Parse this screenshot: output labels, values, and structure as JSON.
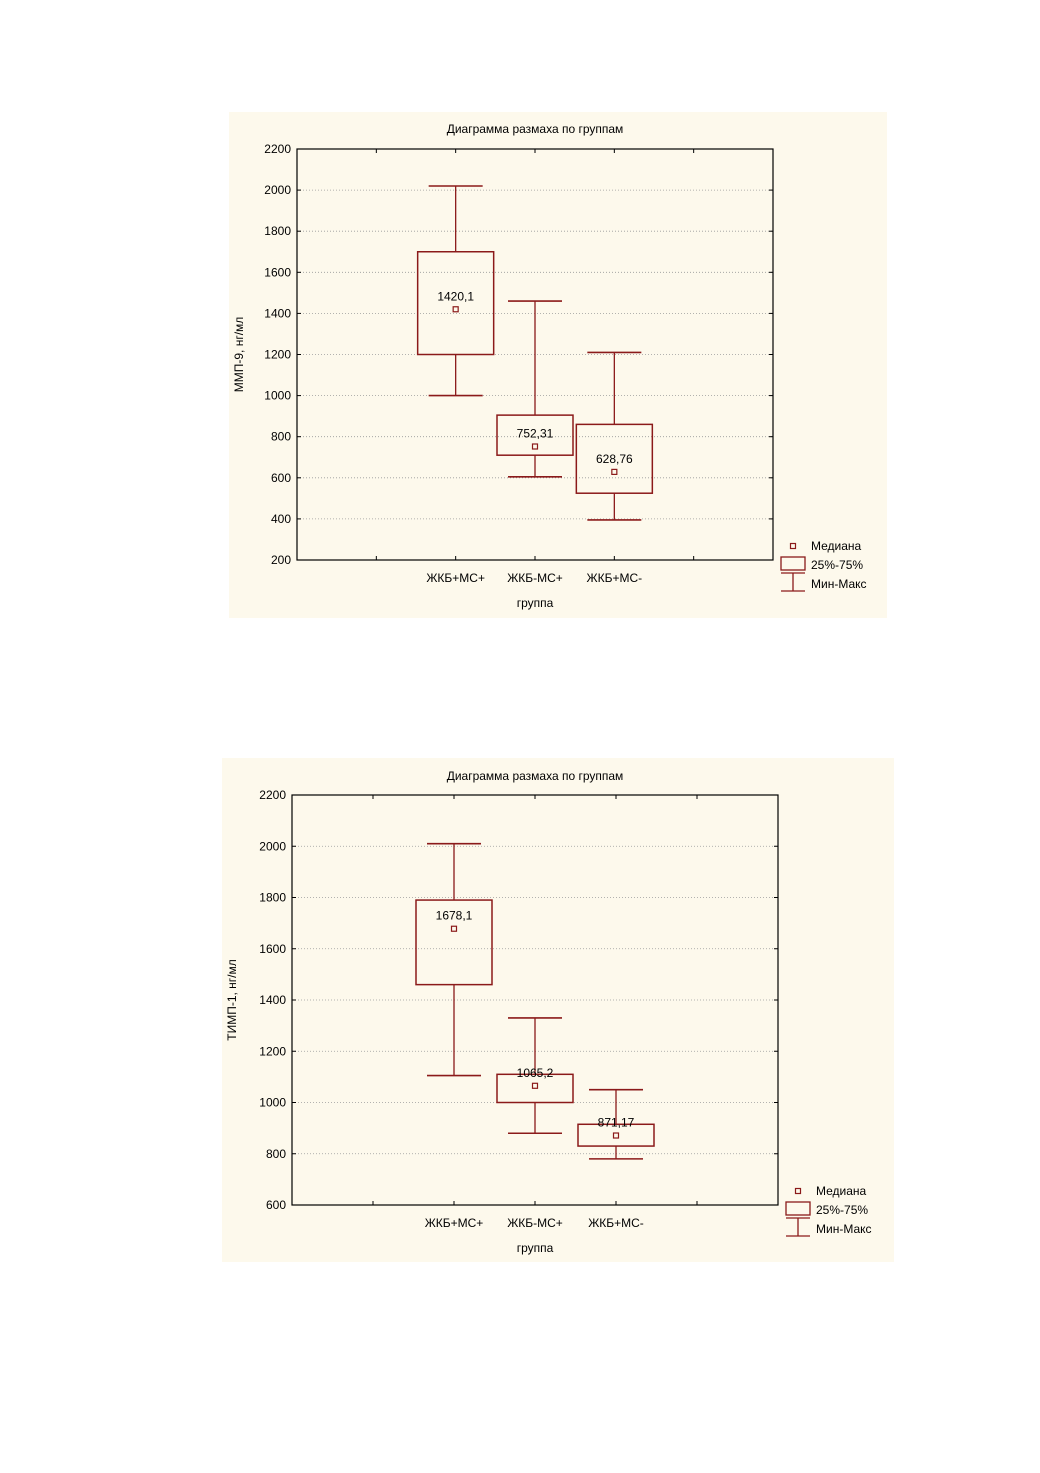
{
  "chart_data": [
    {
      "type": "boxplot",
      "title": "Диаграмма размаха по группам",
      "xlabel": "группа",
      "ylabel": "ММП-9, нг/мл",
      "ylim": [
        200,
        2200
      ],
      "yticks": [
        "200",
        "400",
        "600",
        "800",
        "1000",
        "1200",
        "1400",
        "1600",
        "1800",
        "2000",
        "2200"
      ],
      "grid": true,
      "categories": [
        "ЖКБ+МС+",
        "ЖКБ-МС+",
        "ЖКБ+МС-"
      ],
      "boxes": [
        {
          "min": 1000,
          "q1": 1200,
          "median": 1420.1,
          "q3": 1700,
          "max": 2020,
          "label": "1420,1"
        },
        {
          "min": 605,
          "q1": 710,
          "median": 752.31,
          "q3": 905,
          "max": 1460,
          "label": "752,31"
        },
        {
          "min": 395,
          "q1": 525,
          "median": 628.76,
          "q3": 860,
          "max": 1210,
          "label": "628,76"
        }
      ],
      "legend": {
        "position": "bottom-right",
        "items": [
          "Медиана",
          "25%-75%",
          "Мин-Макс"
        ]
      },
      "colors": {
        "line": "#8b1a1a",
        "background": "#fdf9ec"
      }
    },
    {
      "type": "boxplot",
      "title": "Диаграмма размаха по группам",
      "xlabel": "группа",
      "ylabel": "ТИМП-1, нг/мл",
      "ylim": [
        600,
        2200
      ],
      "yticks": [
        "600",
        "800",
        "1000",
        "1200",
        "1400",
        "1600",
        "1800",
        "2000",
        "2200"
      ],
      "grid": true,
      "categories": [
        "ЖКБ+МС+",
        "ЖКБ-МС+",
        "ЖКБ+МС-"
      ],
      "boxes": [
        {
          "min": 1105,
          "q1": 1460,
          "median": 1678.1,
          "q3": 1790,
          "max": 2010,
          "label": "1678,1"
        },
        {
          "min": 880,
          "q1": 1000,
          "median": 1065.2,
          "q3": 1110,
          "max": 1330,
          "label": "1065,2"
        },
        {
          "min": 780,
          "q1": 830,
          "median": 871.17,
          "q3": 915,
          "max": 1050,
          "label": "871,17"
        }
      ],
      "legend": {
        "position": "bottom-right",
        "items": [
          "Медиана",
          "25%-75%",
          "Мин-Макс"
        ]
      },
      "colors": {
        "line": "#8b1a1a",
        "background": "#fdf9ec"
      }
    }
  ]
}
